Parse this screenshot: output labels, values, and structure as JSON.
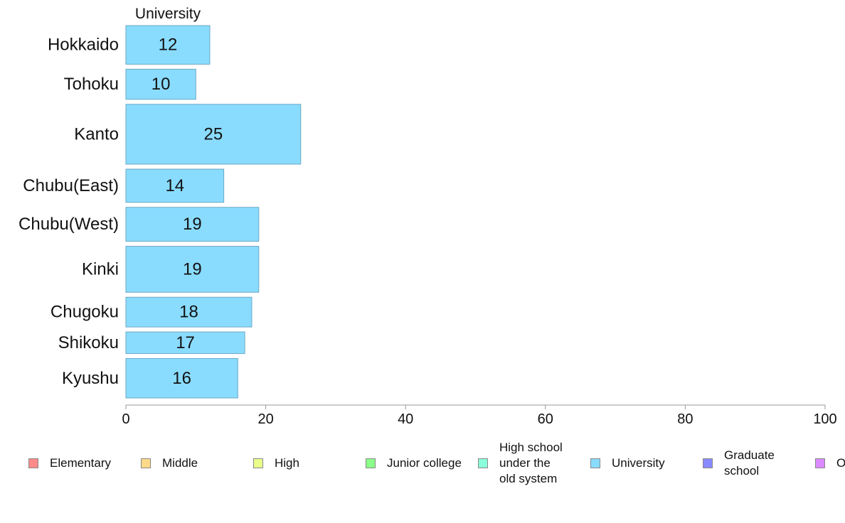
{
  "chart_data": {
    "type": "bar",
    "orientation": "horizontal",
    "title": "University",
    "categories": [
      "Hokkaido",
      "Tohoku",
      "Kanto",
      "Chubu(East)",
      "Chubu(West)",
      "Kinki",
      "Chugoku",
      "Shikoku",
      "Kyushu"
    ],
    "values": [
      12,
      10,
      25,
      14,
      19,
      19,
      18,
      17,
      16
    ],
    "bar_weights": [
      1,
      0.78,
      1.55,
      0.86,
      0.88,
      1.19,
      0.77,
      0.56,
      1.02
    ],
    "xlim": [
      0,
      100
    ],
    "xticks": [
      "0",
      "20",
      "40",
      "60",
      "80",
      "100"
    ],
    "bar_color": "#8adcff",
    "bar_stroke": "#6aa8c4",
    "grid": false,
    "legend": {
      "placement": "bottom",
      "items": [
        {
          "label": "Elementary",
          "color": "#ff8a8a"
        },
        {
          "label": "Middle",
          "color": "#ffd98a"
        },
        {
          "label": "High",
          "color": "#e8ff8a"
        },
        {
          "label": "Junior college",
          "color": "#8aff8a"
        },
        {
          "label": "High school\nunder the\nold system",
          "color": "#8affdc"
        },
        {
          "label": "University",
          "color": "#8adcff"
        },
        {
          "label": "Graduate\nschool",
          "color": "#8a8aff"
        },
        {
          "label": "Others",
          "color": "#dc8aff"
        }
      ]
    }
  }
}
